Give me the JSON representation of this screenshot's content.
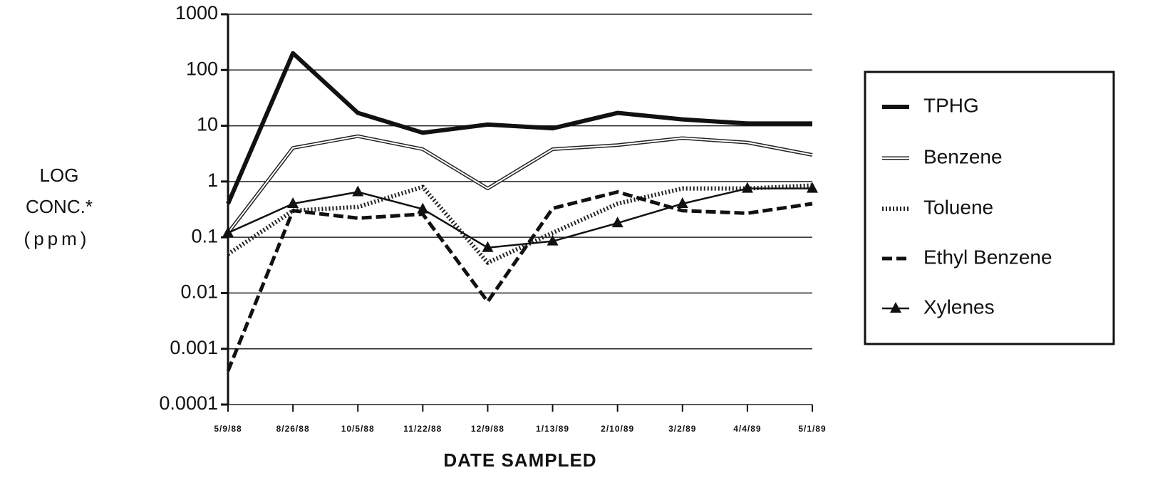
{
  "chart_data": {
    "type": "line",
    "ylabel": [
      "LOG",
      "CONC.*",
      "(ppm)"
    ],
    "xlabel": "DATE SAMPLED",
    "categories": [
      "5/9/88",
      "8/26/88",
      "10/5/88",
      "11/22/88",
      "12/9/88",
      "1/13/89",
      "2/10/89",
      "3/2/89",
      "4/4/89",
      "5/1/89"
    ],
    "series": [
      {
        "name": "TPHG",
        "color": "#111111",
        "style": "thick",
        "values": [
          0.4,
          200,
          17,
          7.5,
          10.5,
          9,
          17,
          13,
          11,
          11
        ]
      },
      {
        "name": "Benzene",
        "color": "#222222",
        "style": "double",
        "values": [
          0.12,
          4,
          6.5,
          3.8,
          0.75,
          3.8,
          4.5,
          6,
          5,
          3
        ]
      },
      {
        "name": "Toluene",
        "color": "#222222",
        "style": "dotted",
        "values": [
          0.05,
          0.3,
          0.35,
          0.8,
          0.035,
          0.12,
          0.4,
          0.75,
          0.75,
          0.85
        ]
      },
      {
        "name": "Ethyl Benzene",
        "color": "#111111",
        "style": "dashed",
        "values": [
          0.0004,
          0.3,
          0.22,
          0.26,
          0.007,
          0.33,
          0.65,
          0.3,
          0.27,
          0.4
        ]
      },
      {
        "name": "Xylenes",
        "color": "#111111",
        "style": "markers",
        "values": [
          0.12,
          0.4,
          0.65,
          0.32,
          0.065,
          0.085,
          0.18,
          0.4,
          0.75,
          0.75
        ]
      }
    ],
    "log_scale": true,
    "ylim": [
      0.0001,
      1000
    ],
    "yticks": [
      0.0001,
      0.001,
      0.01,
      0.1,
      1,
      10,
      100,
      1000
    ],
    "grid": true,
    "legend": "right"
  }
}
